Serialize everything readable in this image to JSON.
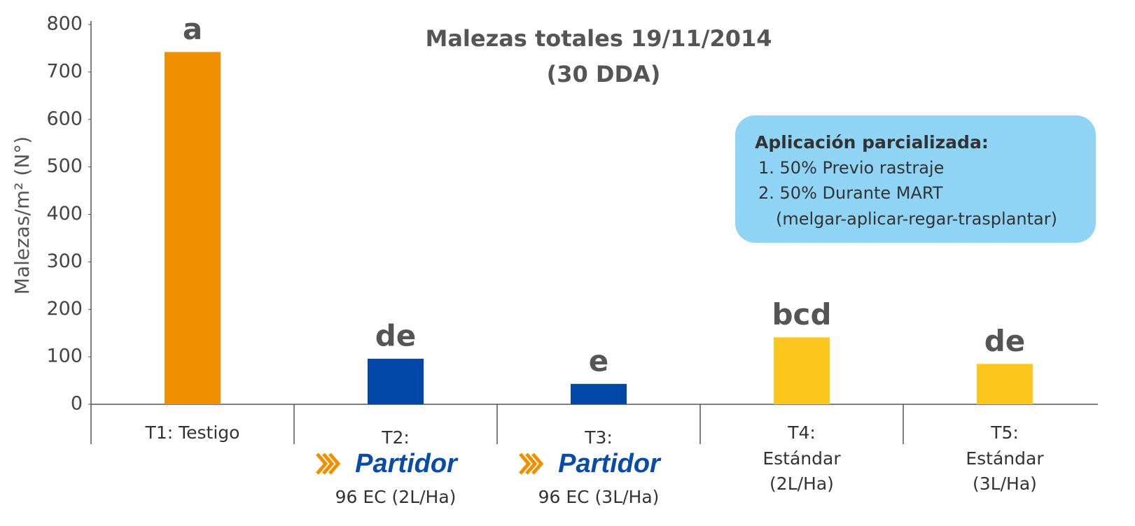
{
  "chart_data": {
    "type": "bar",
    "title": [
      "Malezas totales 19/11/2014",
      "(30 DDA)"
    ],
    "y_label": "Malezas/m² (N°)",
    "categories": [
      [
        "T1: Testigo"
      ],
      [
        "T2:",
        "Partidor",
        "96 EC (2L/Ha)"
      ],
      [
        "T3:",
        "Partidor",
        "96 EC (3L/Ha)"
      ],
      [
        "T4:",
        "Estándar",
        "(2L/Ha)"
      ],
      [
        "T5:",
        "Estándar",
        "(3L/Ha)"
      ]
    ],
    "values": [
      742,
      96,
      43,
      141,
      85
    ],
    "colors": [
      "#f09000",
      "#0047a8",
      "#0047a8",
      "#fcc61c",
      "#fcc61c"
    ],
    "annotations": [
      "a",
      "de",
      "e",
      "bcd",
      "de"
    ],
    "ylim": [
      0,
      800
    ],
    "yticks": [
      0,
      100,
      200,
      300,
      400,
      500,
      600,
      700,
      800
    ],
    "grid": false,
    "note": {
      "title": "Aplicación parcializada:",
      "items": [
        "1. 50% Previo rastraje",
        "2. 50% Durante MART",
        "(melgar-aplicar-regar-trasplantar)"
      ]
    }
  }
}
